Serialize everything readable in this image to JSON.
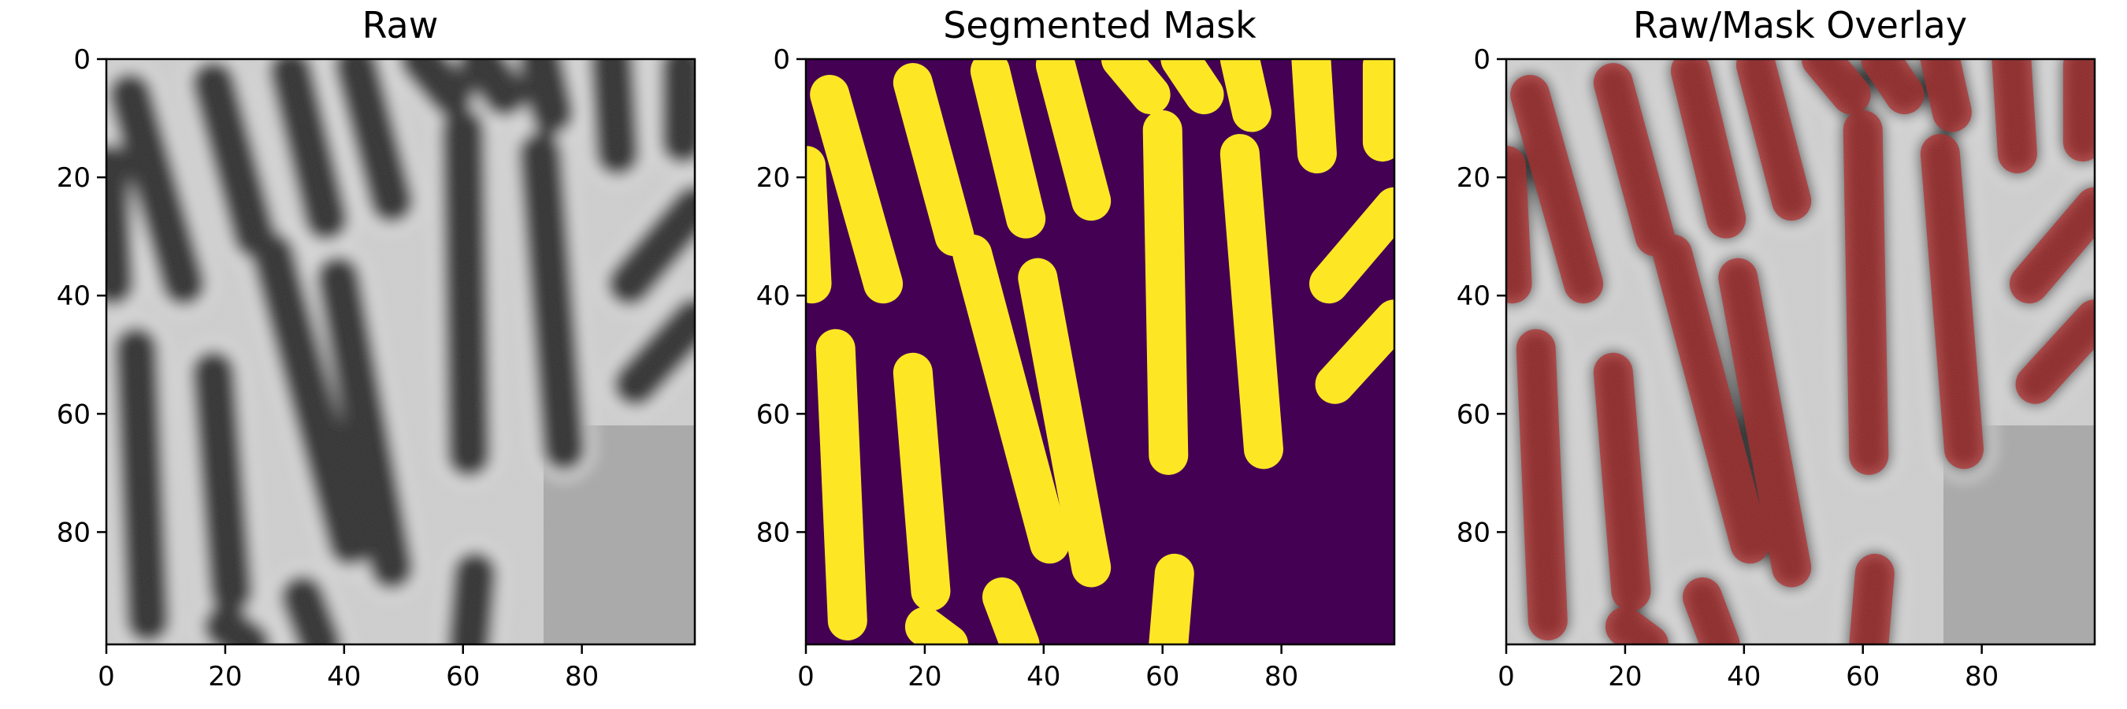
{
  "figure": {
    "panels": [
      {
        "id": "raw",
        "title": "Raw"
      },
      {
        "id": "mask",
        "title": "Segmented Mask"
      },
      {
        "id": "overlay",
        "title": "Raw/Mask Overlay"
      }
    ]
  },
  "axes": {
    "x_ticks": [
      "0",
      "20",
      "40",
      "60",
      "80"
    ],
    "y_ticks": [
      "0",
      "20",
      "40",
      "60",
      "80"
    ],
    "xlim": [
      0,
      99
    ],
    "ylim": [
      0,
      99
    ]
  },
  "colors": {
    "mask_foreground": "#fde725",
    "mask_background": "#440154",
    "overlay_tint": "#b22222",
    "raw_dark": "#2e2e2e",
    "raw_light": "#c8c8c8"
  },
  "cells": [
    {
      "x1": 4,
      "y1": 6,
      "x2": 13,
      "y2": 38
    },
    {
      "x1": 18,
      "y1": 4,
      "x2": 25,
      "y2": 30
    },
    {
      "x1": 31,
      "y1": 2,
      "x2": 37,
      "y2": 27
    },
    {
      "x1": 42,
      "y1": 1,
      "x2": 48,
      "y2": 24
    },
    {
      "x1": 53,
      "y1": 0,
      "x2": 58,
      "y2": 6
    },
    {
      "x1": 63,
      "y1": 0,
      "x2": 67,
      "y2": 6
    },
    {
      "x1": 73,
      "y1": 0,
      "x2": 75,
      "y2": 9
    },
    {
      "x1": 60,
      "y1": 12,
      "x2": 61,
      "y2": 67
    },
    {
      "x1": 73,
      "y1": 16,
      "x2": 77,
      "y2": 66
    },
    {
      "x1": 85,
      "y1": 0,
      "x2": 86,
      "y2": 16
    },
    {
      "x1": 97,
      "y1": 1,
      "x2": 97,
      "y2": 14
    },
    {
      "x1": 28,
      "y1": 33,
      "x2": 41,
      "y2": 82
    },
    {
      "x1": 39,
      "y1": 37,
      "x2": 48,
      "y2": 86
    },
    {
      "x1": 18,
      "y1": 53,
      "x2": 21,
      "y2": 90
    },
    {
      "x1": 5,
      "y1": 49,
      "x2": 7,
      "y2": 95
    },
    {
      "x1": 0,
      "y1": 18,
      "x2": 1,
      "y2": 38
    },
    {
      "x1": 62,
      "y1": 87,
      "x2": 61,
      "y2": 99
    },
    {
      "x1": 33,
      "y1": 91,
      "x2": 36,
      "y2": 99
    },
    {
      "x1": 20,
      "y1": 96,
      "x2": 24,
      "y2": 99
    },
    {
      "x1": 88,
      "y1": 38,
      "x2": 99,
      "y2": 25
    },
    {
      "x1": 89,
      "y1": 55,
      "x2": 99,
      "y2": 44
    }
  ]
}
